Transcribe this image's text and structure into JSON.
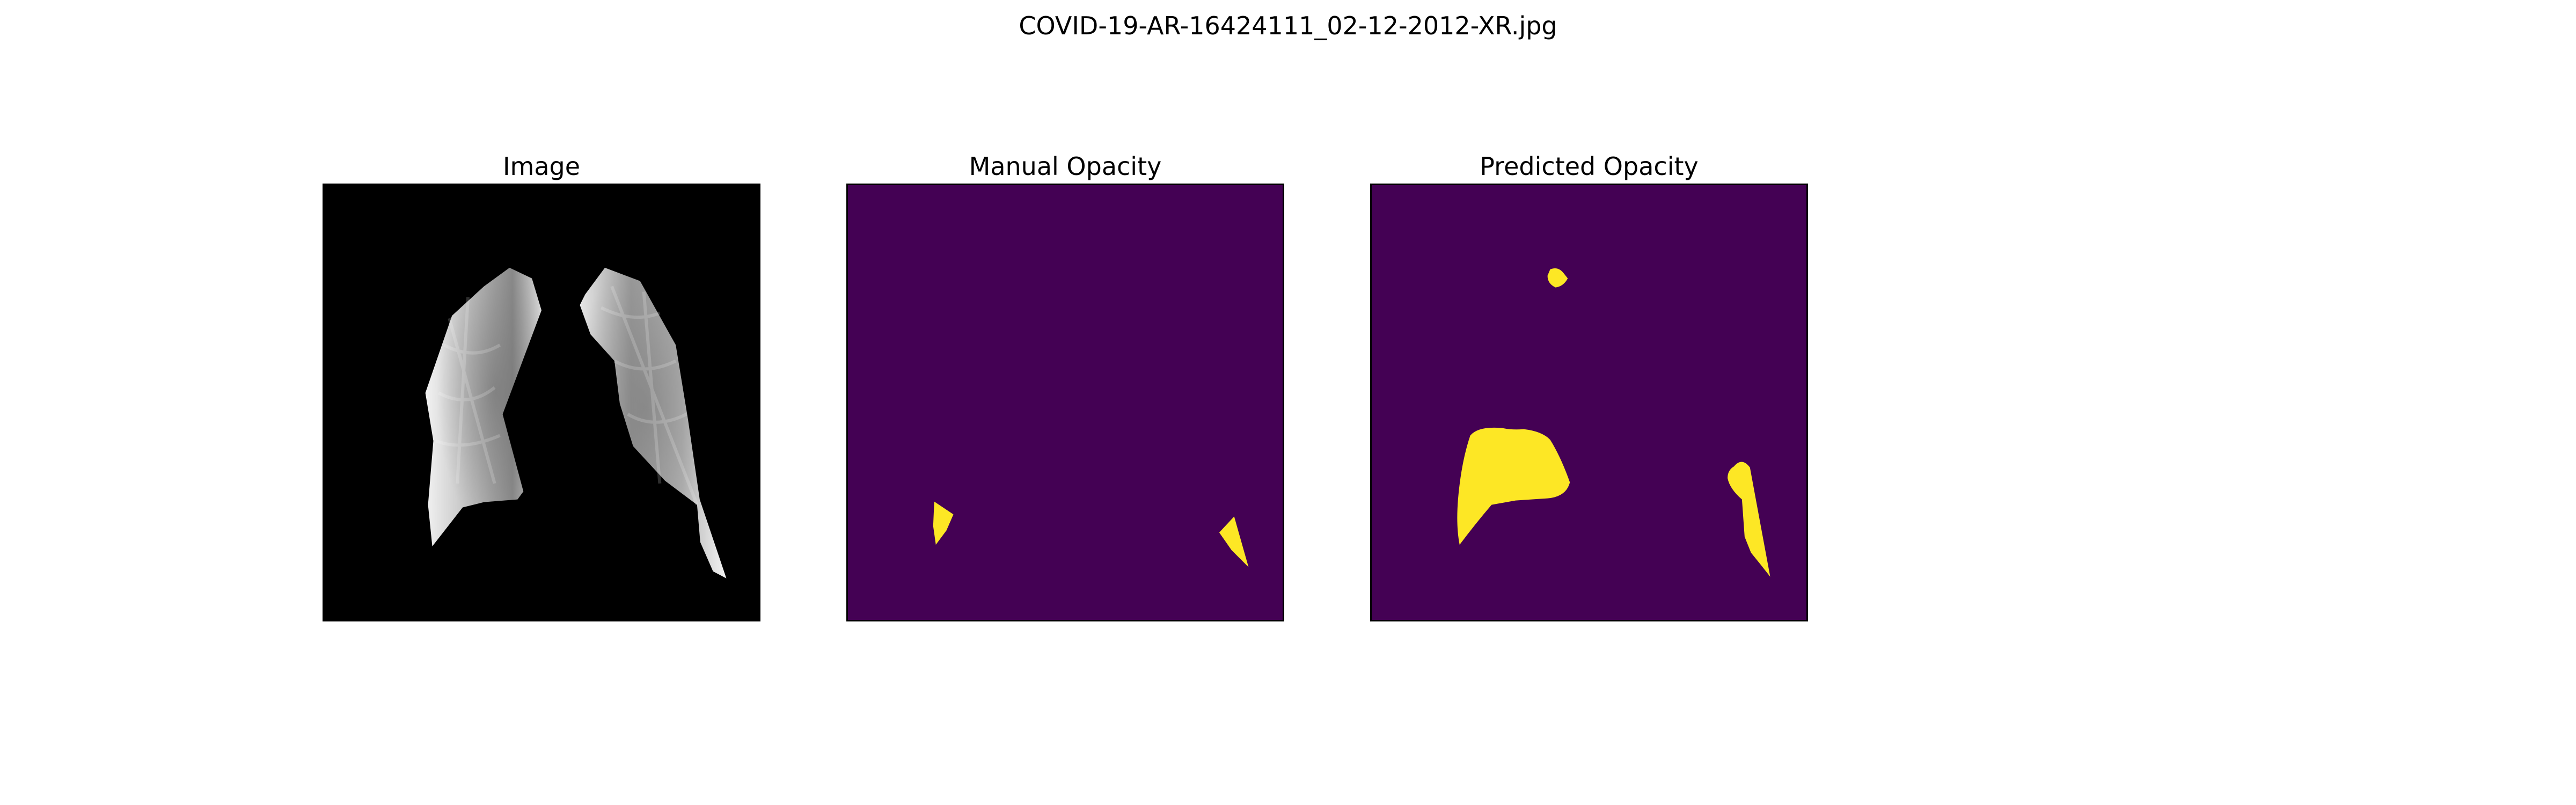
{
  "figure": {
    "title": "COVID-19-AR-16424111_02-12-2012-XR.jpg"
  },
  "panels": [
    {
      "title": "Image"
    },
    {
      "title": "Manual Opacity"
    },
    {
      "title": "Predicted Opacity"
    }
  ],
  "colors": {
    "background": "#ffffff",
    "image_background": "#000000",
    "mask_background": "#440154",
    "mask_foreground": "#fde725"
  },
  "colormap": "viridis"
}
